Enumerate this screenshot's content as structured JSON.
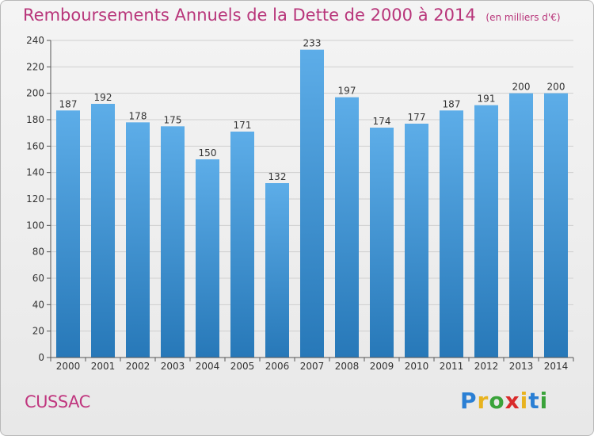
{
  "header": {
    "title": "Remboursements Annuels de la Dette de 2000 à 2014",
    "subtitle": "(en milliers d'€)"
  },
  "footer": {
    "commune": "CUSSAC",
    "logo_letters": [
      "P",
      "r",
      "o",
      "x",
      "i",
      "t",
      "i"
    ],
    "logo_colors": [
      "#2a7fd4",
      "#e8b31f",
      "#3aa33a",
      "#d92b2b",
      "#e8b31f",
      "#2a7fd4",
      "#3aa33a"
    ]
  },
  "chart_data": {
    "type": "bar",
    "title": "Remboursements Annuels de la Dette de 2000 à 2014",
    "subtitle": "(en milliers d'€)",
    "categories": [
      "2000",
      "2001",
      "2002",
      "2003",
      "2004",
      "2005",
      "2006",
      "2007",
      "2008",
      "2009",
      "2010",
      "2011",
      "2012",
      "2013",
      "2014"
    ],
    "values": [
      187,
      192,
      178,
      175,
      150,
      171,
      132,
      233,
      197,
      174,
      177,
      187,
      191,
      200,
      200
    ],
    "ylim": [
      0,
      240
    ],
    "yticks": [
      0,
      20,
      40,
      60,
      80,
      100,
      120,
      140,
      160,
      180,
      200,
      220,
      240
    ],
    "grid": true,
    "colors": {
      "bar_light": "#5dade8",
      "bar_dark": "#2778b8",
      "grid": "#cfcfcf",
      "axis": "#555555",
      "text": "#333333"
    }
  }
}
